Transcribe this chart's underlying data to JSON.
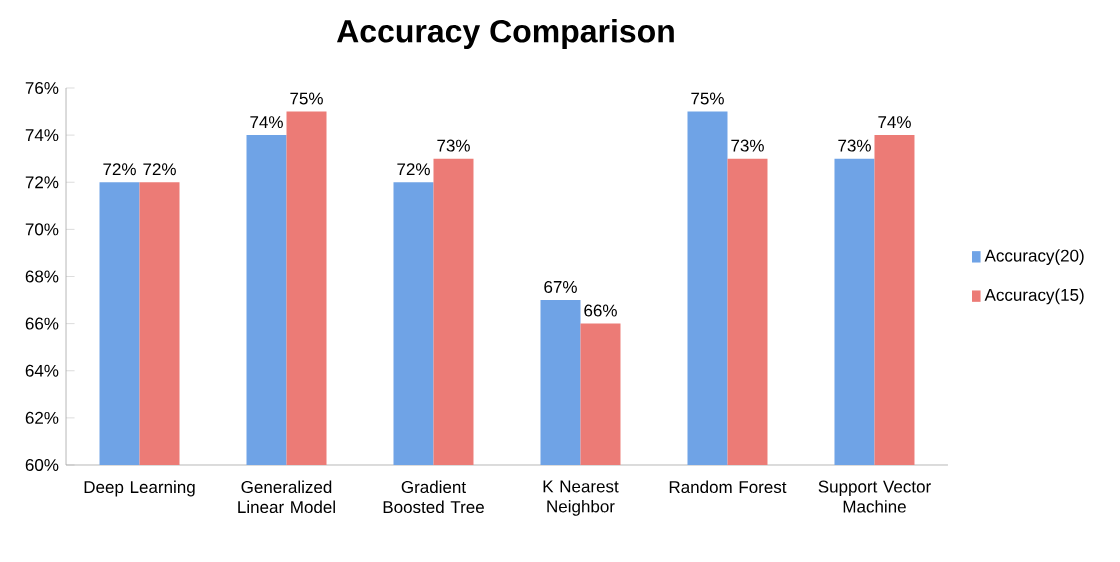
{
  "chart_data": {
    "type": "bar",
    "title": "Accuracy Comparison",
    "categories": [
      "Deep Learning",
      "Generalized Linear Model",
      "Gradient Boosted Tree",
      "K Nearest Neighbor",
      "Random Forest",
      "Support Vector Machine"
    ],
    "series": [
      {
        "name": "Accuracy(20)",
        "color": "#6fa3e6",
        "values": [
          72,
          74,
          72,
          67,
          75,
          73
        ],
        "value_labels": [
          "72%",
          "74%",
          "72%",
          "67%",
          "75%",
          "73%"
        ]
      },
      {
        "name": "Accuracy(15)",
        "color": "#ec7b76",
        "values": [
          72,
          75,
          73,
          66,
          73,
          74
        ],
        "value_labels": [
          "72%",
          "75%",
          "73%",
          "66%",
          "73%",
          "74%"
        ]
      }
    ],
    "ylim": [
      60,
      76
    ],
    "yticks": [
      {
        "value": 60,
        "label": "60%"
      },
      {
        "value": 62,
        "label": "62%"
      },
      {
        "value": 64,
        "label": "64%"
      },
      {
        "value": 66,
        "label": "66%"
      },
      {
        "value": 68,
        "label": "68%"
      },
      {
        "value": 70,
        "label": "70%"
      },
      {
        "value": 72,
        "label": "72%"
      },
      {
        "value": 74,
        "label": "74%"
      },
      {
        "value": 76,
        "label": "76%"
      }
    ],
    "grid": false,
    "legend": "right"
  }
}
